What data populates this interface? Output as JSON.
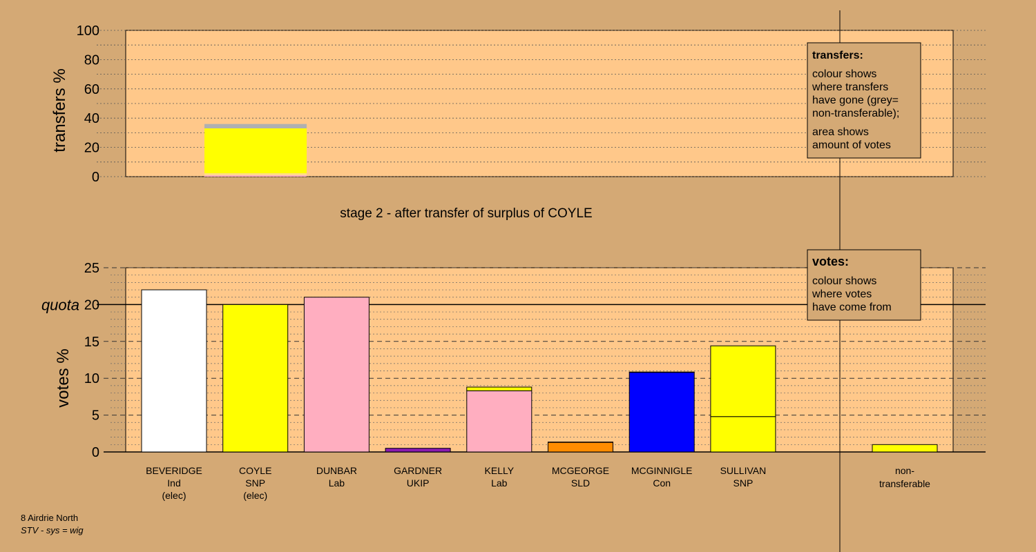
{
  "chart_data": [
    {
      "type": "bar",
      "panel": "transfers",
      "ylabel": "transfers %",
      "ylim": [
        0,
        100
      ],
      "yticks": [
        0,
        20,
        40,
        60,
        80,
        100
      ],
      "caption": "stage 2 - after transfer of surplus of COYLE",
      "categories": [
        "COYLE"
      ],
      "stacked_segments": [
        {
          "from": 0,
          "to": 1,
          "color": "#ffaec0"
        },
        {
          "from": 1,
          "to": 2.3,
          "color": "#ffdd88"
        },
        {
          "from": 2.3,
          "to": 33,
          "color": "#ffff00"
        },
        {
          "from": 33,
          "to": 36,
          "color": "#b0b0b0"
        }
      ],
      "legend": {
        "title": "transfers:",
        "lines1": [
          "colour shows",
          "where transfers",
          "have gone (grey=",
          "non-transferable);"
        ],
        "lines2": [
          "area shows",
          "amount of votes"
        ]
      }
    },
    {
      "type": "bar",
      "panel": "votes",
      "ylabel": "votes %",
      "ylim": [
        0,
        25
      ],
      "yticks": [
        0,
        5,
        10,
        15,
        20,
        25
      ],
      "quota": 20,
      "quota_label": "quota",
      "candidates": [
        {
          "name": "BEVERIDGE",
          "party": "Ind",
          "status": "(elec)",
          "segments": [
            {
              "value": 22.0,
              "color": "#ffffff"
            }
          ]
        },
        {
          "name": "COYLE",
          "party": "SNP",
          "status": "(elec)",
          "segments": [
            {
              "value": 20.0,
              "color": "#ffff00"
            }
          ]
        },
        {
          "name": "DUNBAR",
          "party": "Lab",
          "status": "",
          "segments": [
            {
              "value": 21.0,
              "color": "#ffaec0"
            }
          ]
        },
        {
          "name": "GARDNER",
          "party": "UKIP",
          "status": "",
          "segments": [
            {
              "value": 0.5,
              "color": "#8a1bb0"
            }
          ]
        },
        {
          "name": "KELLY",
          "party": "Lab",
          "status": "",
          "segments": [
            {
              "value": 8.3,
              "color": "#ffaec0"
            },
            {
              "value": 0.5,
              "color": "#ffff00"
            }
          ]
        },
        {
          "name": "MCGEORGE",
          "party": "SLD",
          "status": "",
          "segments": [
            {
              "value": 1.3,
              "color": "#ff8c00"
            },
            {
              "value": 0.05,
              "color": "#ffff00"
            }
          ]
        },
        {
          "name": "MCGINNIGLE",
          "party": "Con",
          "status": "",
          "segments": [
            {
              "value": 10.8,
              "color": "#0000ff"
            },
            {
              "value": 0.05,
              "color": "#ffff00"
            }
          ]
        },
        {
          "name": "SULLIVAN",
          "party": "SNP",
          "status": "",
          "segments": [
            {
              "value": 4.8,
              "color": "#ffff00"
            },
            {
              "value": 9.6,
              "color": "#ffff00"
            }
          ]
        }
      ],
      "nontransferable": {
        "label1": "non-",
        "label2": "transferable",
        "value": 1.0,
        "color": "#ffff00"
      },
      "legend": {
        "title": "votes:",
        "lines": [
          "colour shows",
          "where votes",
          "have come from"
        ]
      }
    }
  ],
  "footer": {
    "ward": "8 Airdrie North",
    "system": "STV - sys = wig"
  },
  "colors": {
    "page_bg": "#d4a975",
    "plot_bg": "#ffc88a",
    "legend_bg": "#d4a975"
  }
}
